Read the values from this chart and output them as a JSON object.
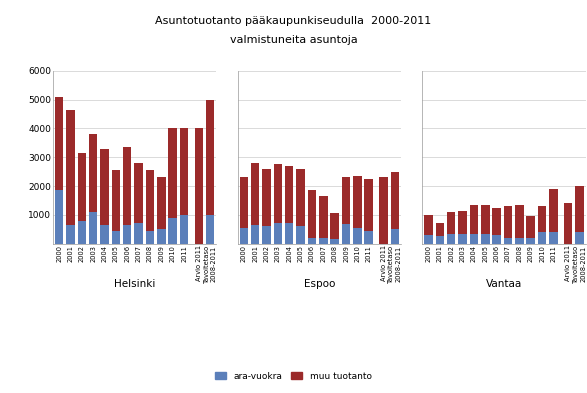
{
  "title_line1": "Asuntotuotanto pääkaupunkiseudulla  2000-2011",
  "title_line2": "valmistuneita asuntoja",
  "cities": [
    "Helsinki",
    "Espoo",
    "Vantaa"
  ],
  "years_regular": [
    "2000",
    "2001",
    "2002",
    "2003",
    "2004",
    "2005",
    "2006",
    "2007",
    "2008",
    "2009",
    "2010",
    "2011"
  ],
  "years_extra": [
    "Arvio 2011",
    "Tavoitetaso\n2008-2011"
  ],
  "helsinki": {
    "ara_regular": [
      1850,
      650,
      800,
      1100,
      650,
      450,
      650,
      700,
      450,
      500,
      900,
      1000
    ],
    "muu_regular": [
      3250,
      4000,
      2350,
      2700,
      2650,
      2100,
      2700,
      2100,
      2100,
      1800,
      3100,
      3000
    ],
    "ara_extra": [
      0,
      1000
    ],
    "muu_extra": [
      4000,
      4000
    ],
    "has_bg_extra": [
      false,
      true
    ]
  },
  "espoo": {
    "ara_regular": [
      550,
      650,
      600,
      700,
      700,
      600,
      200,
      200,
      150,
      680,
      550,
      450
    ],
    "muu_regular": [
      1750,
      2150,
      2000,
      2050,
      2000,
      2000,
      1650,
      1450,
      900,
      1650,
      1800,
      1800
    ],
    "ara_extra": [
      0,
      500
    ],
    "muu_extra": [
      2300,
      2000
    ],
    "has_bg_extra": [
      false,
      true
    ]
  },
  "vantaa": {
    "ara_regular": [
      300,
      250,
      350,
      350,
      350,
      350,
      300,
      200,
      200,
      200,
      400,
      400
    ],
    "muu_regular": [
      700,
      450,
      750,
      800,
      1000,
      1000,
      950,
      1100,
      1150,
      750,
      900,
      1500
    ],
    "ara_extra": [
      0,
      400
    ],
    "muu_extra": [
      1400,
      1600
    ],
    "has_bg_extra": [
      false,
      true
    ]
  },
  "color_ara": "#5b7fba",
  "color_muu": "#9b2a2a",
  "color_extra_bg": "#fce4b0",
  "ylim": [
    0,
    6000
  ],
  "yticks": [
    1000,
    2000,
    3000,
    4000,
    5000,
    6000
  ],
  "legend_ara": "ara-vuokra",
  "legend_muu": "muu tuotanto"
}
